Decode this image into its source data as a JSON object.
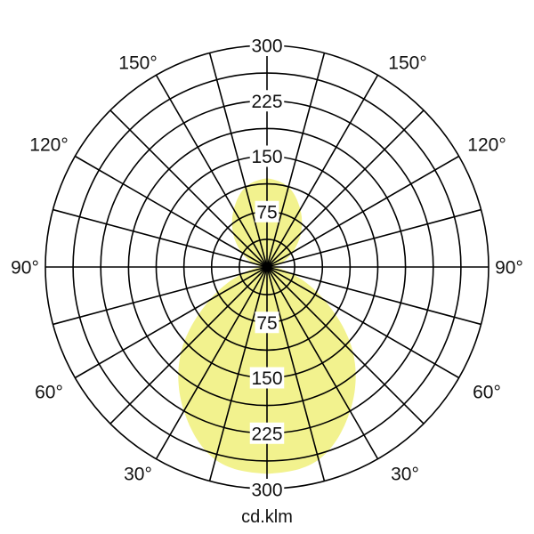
{
  "chart_data": {
    "type": "polar",
    "unit_label": "cd.klm",
    "radial_range": [
      0,
      300
    ],
    "radial_ring_step": 37.5,
    "radial_tick_labels": [
      "75",
      "150",
      "225",
      "300"
    ],
    "angular_step_deg": 15,
    "angle_labels": [
      "150°",
      "120°",
      "90°",
      "60°",
      "30°"
    ],
    "grid": true,
    "fill_color": "#f2f28e",
    "grid_color": "#000000",
    "symmetric": true,
    "series": [
      {
        "angles_deg": [
          0,
          15,
          30,
          45,
          60,
          75,
          90,
          105,
          120,
          135,
          150,
          165,
          180
        ],
        "values": [
          280,
          270,
          225,
          165,
          90,
          35,
          10,
          20,
          40,
          65,
          90,
          112,
          120
        ]
      }
    ]
  }
}
